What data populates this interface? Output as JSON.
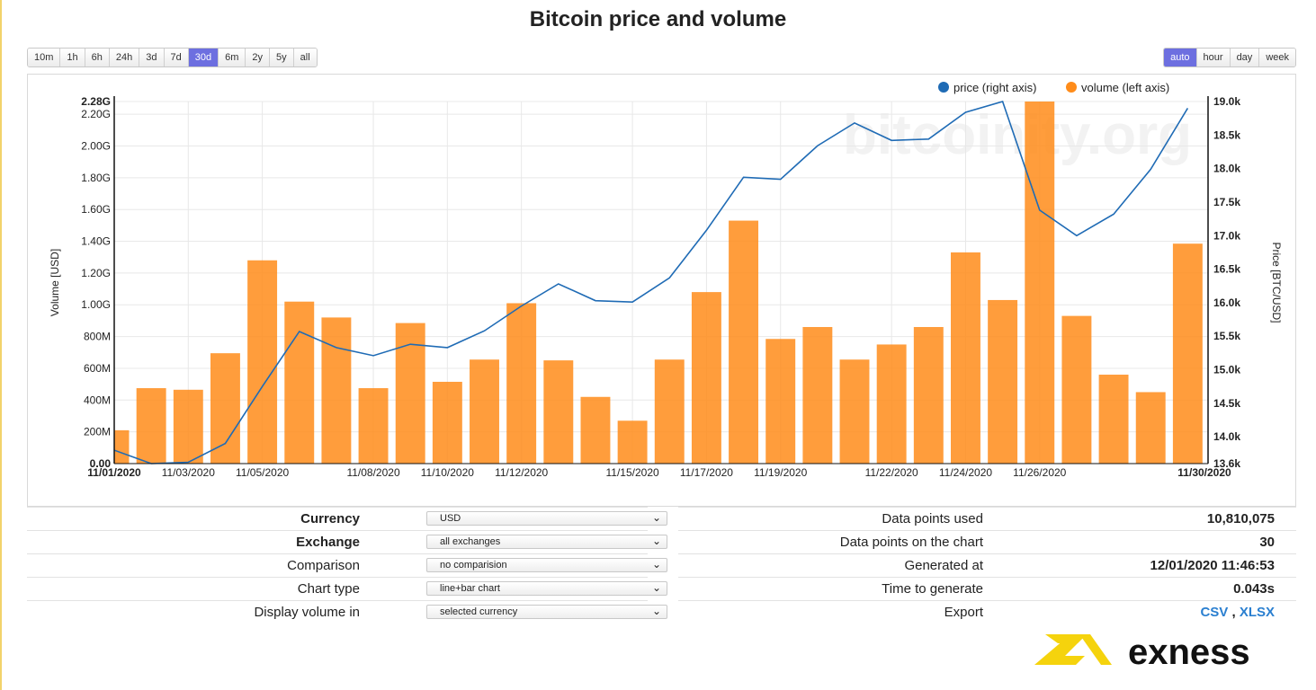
{
  "title": "Bitcoin price and volume",
  "range_buttons": [
    "10m",
    "1h",
    "6h",
    "24h",
    "3d",
    "7d",
    "30d",
    "6m",
    "2y",
    "5y",
    "all"
  ],
  "range_active": "30d",
  "interval_buttons": [
    "auto",
    "hour",
    "day",
    "week"
  ],
  "interval_active": "auto",
  "watermark": "bitcoinity.org",
  "colors": {
    "accent": "#6d6fe0",
    "bar": "#ff8c1a",
    "line": "#1f6bb5",
    "link": "#2a7fd0",
    "logo": "#f5d30d"
  },
  "chart_data": {
    "type": "bar+line",
    "title": "Bitcoin price and volume",
    "ylabel_left": "Volume [USD]",
    "ylabel_right": "Price [BTC/USD]",
    "left_ticks": [
      "0.00",
      "200M",
      "400M",
      "600M",
      "800M",
      "1.00G",
      "1.20G",
      "1.40G",
      "1.60G",
      "1.80G",
      "2.00G",
      "2.20G",
      "2.28G"
    ],
    "left_tick_values": [
      0,
      200,
      400,
      600,
      800,
      1000,
      1200,
      1400,
      1600,
      1800,
      2000,
      2200,
      2280
    ],
    "right_ticks": [
      "13.6k",
      "14.0k",
      "14.5k",
      "15.0k",
      "15.5k",
      "16.0k",
      "16.5k",
      "17.0k",
      "17.5k",
      "18.0k",
      "18.5k",
      "19.0k"
    ],
    "right_tick_values": [
      13600,
      14000,
      14500,
      15000,
      15500,
      16000,
      16500,
      17000,
      17500,
      18000,
      18500,
      19000
    ],
    "ylim_left": [
      0,
      2280
    ],
    "ylim_right": [
      13600,
      19000
    ],
    "x_labels": [
      {
        "i": 0,
        "text": "11/01/2020",
        "bold": true
      },
      {
        "i": 2,
        "text": "11/03/2020"
      },
      {
        "i": 4,
        "text": "11/05/2020"
      },
      {
        "i": 7,
        "text": "11/08/2020"
      },
      {
        "i": 9,
        "text": "11/10/2020"
      },
      {
        "i": 11,
        "text": "11/12/2020"
      },
      {
        "i": 14,
        "text": "11/15/2020"
      },
      {
        "i": 16,
        "text": "11/17/2020"
      },
      {
        "i": 18,
        "text": "11/19/2020"
      },
      {
        "i": 21,
        "text": "11/22/2020"
      },
      {
        "i": 23,
        "text": "11/24/2020"
      },
      {
        "i": 25,
        "text": "11/26/2020"
      },
      {
        "i": 29,
        "text": "11/30/2020",
        "bold": true
      }
    ],
    "legend": [
      {
        "name": "price (right axis)",
        "color": "#1f6bb5"
      },
      {
        "name": "volume (left axis)",
        "color": "#ff8c1a"
      }
    ],
    "series": [
      {
        "name": "volume (left axis)",
        "unit": "M USD",
        "type": "bar",
        "values": [
          210,
          475,
          465,
          695,
          1280,
          1020,
          920,
          475,
          885,
          515,
          655,
          1010,
          650,
          420,
          270,
          655,
          1080,
          1530,
          785,
          860,
          655,
          750,
          860,
          1330,
          1030,
          2280,
          930,
          560,
          450,
          1385
        ]
      },
      {
        "name": "price (right axis)",
        "unit": "USD",
        "type": "line",
        "values": [
          13800,
          13600,
          13620,
          13900,
          14750,
          15570,
          15330,
          15210,
          15380,
          15330,
          15580,
          15950,
          16280,
          16030,
          16010,
          16370,
          17080,
          17870,
          17840,
          18340,
          18680,
          18420,
          18440,
          18840,
          19000,
          17380,
          17000,
          17320,
          17990,
          18900
        ]
      }
    ]
  },
  "settings": [
    {
      "label": "Currency",
      "bold": true,
      "value": "USD"
    },
    {
      "label": "Exchange",
      "bold": true,
      "value": "all exchanges"
    },
    {
      "label": "Comparison",
      "bold": false,
      "value": "no comparision"
    },
    {
      "label": "Chart type",
      "bold": false,
      "value": "line+bar chart"
    },
    {
      "label": "Display volume in",
      "bold": false,
      "value": "selected currency"
    }
  ],
  "stats": [
    {
      "label": "Data points used",
      "value": "10,810,075"
    },
    {
      "label": "Data points on the chart",
      "value": "30"
    },
    {
      "label": "Generated at",
      "value": "12/01/2020 11:46:53"
    },
    {
      "label": "Time to generate",
      "value": "0.043s"
    }
  ],
  "export": {
    "label": "Export",
    "csv": "CSV",
    "sep": ",",
    "xlsx": "XLSX"
  },
  "logo_text": "exness"
}
